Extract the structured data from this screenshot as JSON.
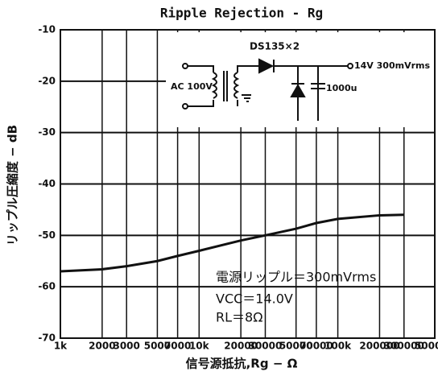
{
  "chart_data": {
    "type": "line",
    "title": "Ripple Rejection - Rg",
    "x_label": "信号源抵抗,Rg − Ω",
    "y_label": "リップル圧縮度 − dB",
    "xscale": "log",
    "grid": true,
    "xlim": [
      1000,
      500000
    ],
    "ylim": [
      -70,
      -10
    ],
    "xticks": [
      {
        "value": 1000,
        "label": "1k"
      },
      2000,
      3000,
      5000,
      7000,
      {
        "value": 10000,
        "label": "10k"
      },
      20000,
      30000,
      50000,
      70000,
      {
        "value": 100000,
        "label": "100k"
      },
      200000,
      300000,
      500000
    ],
    "xtick_labels": [
      "1k",
      "2",
      "3",
      "5",
      "7",
      "10k",
      "2",
      "3",
      "5",
      "7",
      "100k",
      "2",
      "3",
      "5"
    ],
    "yticks": [
      -10,
      -20,
      -30,
      -40,
      -50,
      -60,
      -70
    ],
    "x": [
      1000,
      2000,
      3000,
      5000,
      7000,
      10000,
      20000,
      30000,
      50000,
      70000,
      100000,
      200000,
      300000
    ],
    "series": [
      {
        "color": "#111111",
        "values": [
          -57,
          -56.6,
          -56,
          -55,
          -54,
          -53,
          -51,
          -50,
          -48.7,
          -47.6,
          -46.8,
          -46.1,
          -46
        ]
      }
    ],
    "annotations": [
      "電源リップル＝300mVrms",
      "VCC＝14.0V",
      "RL＝8Ω"
    ],
    "inset": {
      "diode": "DS135×2",
      "input": "AC 100V",
      "output": "14V 300mVrms",
      "capacitor": "1000u"
    }
  }
}
